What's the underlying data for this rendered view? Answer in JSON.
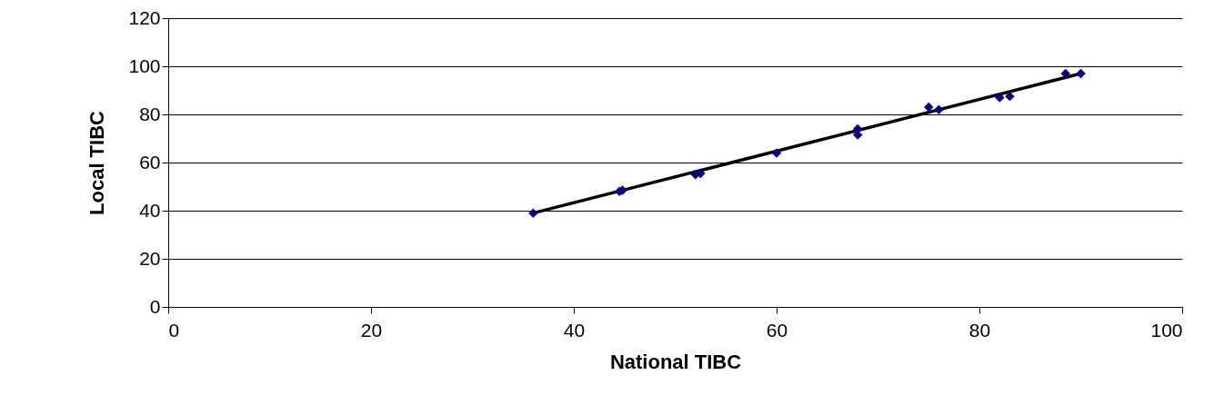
{
  "chart_data": {
    "type": "scatter",
    "xlabel": "National TIBC",
    "ylabel": "Local TIBC",
    "xlim": [
      0,
      100
    ],
    "xticks": [
      0,
      20,
      40,
      60,
      80,
      100
    ],
    "ylim": [
      0,
      120
    ],
    "yticks": [
      0,
      20,
      40,
      60,
      80,
      100,
      120
    ],
    "grid": "y",
    "series": [
      {
        "marker": "diamond",
        "color": "#000080",
        "x": [
          36,
          44.5,
          44.8,
          52,
          52.5,
          60,
          68,
          68,
          75,
          76,
          82,
          83,
          88.5,
          90
        ],
        "values": [
          39,
          48,
          48.5,
          55,
          55.5,
          64,
          74,
          71.5,
          83,
          82,
          87,
          87.5,
          97,
          97
        ]
      },
      {
        "type": "line",
        "marker": "none",
        "color": "#000000",
        "x": [
          36,
          90
        ],
        "values": [
          39,
          97
        ]
      }
    ]
  }
}
